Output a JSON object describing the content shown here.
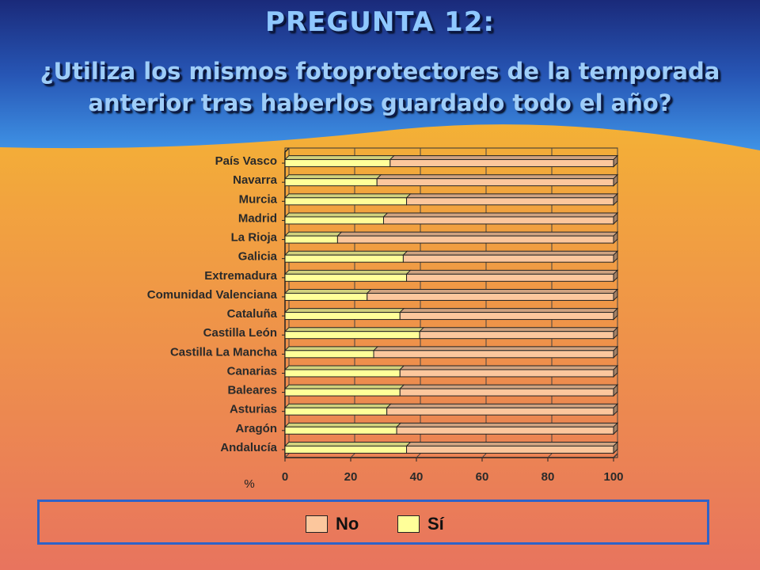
{
  "slide": {
    "title": "PREGUNTA 12:",
    "question": "¿Utiliza los mismos fotoprotectores de la temporada anterior tras haberlos guardado todo el año?"
  },
  "colors": {
    "no": "#fcc79d",
    "si": "#ffff99",
    "header_top": "#1a2a7a",
    "legend_border": "#2f63c8"
  },
  "chart_data": {
    "type": "bar",
    "orientation": "horizontal",
    "stacked": true,
    "categories": [
      "País Vasco",
      "Navarra",
      "Murcia",
      "Madrid",
      "La Rioja",
      "Galicia",
      "Extremadura",
      "Comunidad Valenciana",
      "Cataluña",
      "Castilla León",
      "Castilla La Mancha",
      "Canarias",
      "Baleares",
      "Asturias",
      "Aragón",
      "Andalucía"
    ],
    "series": [
      {
        "name": "Sí",
        "values": [
          32,
          28,
          37,
          30,
          16,
          36,
          37,
          25,
          35,
          41,
          27,
          35,
          35,
          31,
          34,
          37
        ]
      },
      {
        "name": "No",
        "values": [
          68,
          72,
          63,
          70,
          84,
          64,
          63,
          75,
          65,
          59,
          73,
          65,
          65,
          69,
          66,
          63
        ]
      }
    ],
    "xlim": [
      0,
      100
    ],
    "xticks": [
      "0",
      "20",
      "40",
      "60",
      "80",
      "100"
    ],
    "xlabel": "%",
    "grid": true,
    "legend_position": "bottom",
    "legend": [
      "No",
      "Sí"
    ]
  }
}
